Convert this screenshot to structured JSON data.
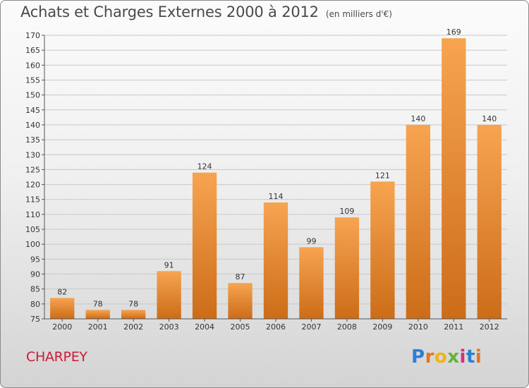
{
  "header": {
    "title": "Achats et Charges Externes 2000 à 2012",
    "subtitle": "(en milliers d'€)"
  },
  "footer": {
    "commune": "CHARPEY",
    "logo_text": "Proxiti",
    "logo_letter_colors": [
      "#2a7fd6",
      "#e57420",
      "#f0b419",
      "#66b23a",
      "#d62f7a",
      "#2a7fd6",
      "#e57420"
    ]
  },
  "colors": {
    "bar_top": "#f7a451",
    "bar_bottom": "#cc6c18",
    "gridline": "#c8c8c8",
    "commune": "#cc1a3a"
  },
  "chart_data": {
    "type": "bar",
    "title": "Achats et Charges Externes 2000 à 2012",
    "subtitle": "(en milliers d'€)",
    "categories": [
      "2000",
      "2001",
      "2002",
      "2003",
      "2004",
      "2005",
      "2006",
      "2007",
      "2008",
      "2009",
      "2010",
      "2011",
      "2012"
    ],
    "values": [
      82,
      78,
      78,
      91,
      124,
      87,
      114,
      99,
      109,
      121,
      140,
      169,
      140
    ],
    "ylim": [
      75,
      170
    ],
    "ytick_step": 5,
    "grid": true
  }
}
